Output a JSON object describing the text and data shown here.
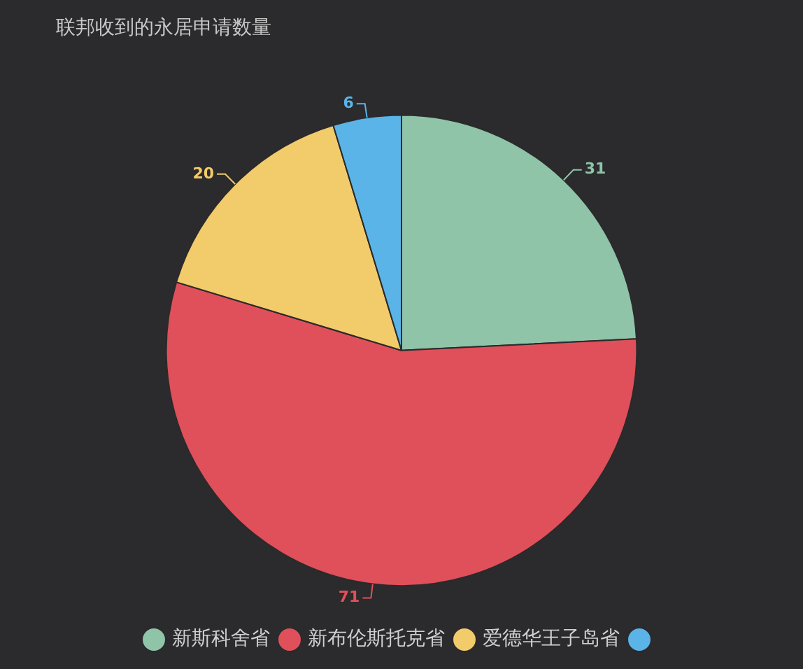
{
  "chart_data": {
    "type": "pie",
    "title": "联邦收到的永居申请数量",
    "categories": [
      "新斯科舍省",
      "新布伦斯托克省",
      "爱德华王子岛省",
      null
    ],
    "values": [
      31,
      71,
      20,
      6
    ],
    "colors": [
      "#8fc4a9",
      "#e0505a",
      "#f2cb6a",
      "#5ab4e8"
    ],
    "data_labels": true,
    "legend": "bottom"
  }
}
